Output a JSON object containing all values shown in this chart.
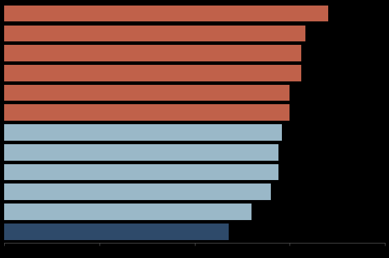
{
  "values": [
    85,
    79,
    78,
    78,
    75,
    75,
    73,
    72,
    72,
    70,
    65,
    59
  ],
  "colors": [
    "#c0614a",
    "#c0614a",
    "#c0614a",
    "#c0614a",
    "#c0614a",
    "#c0614a",
    "#9ab8c8",
    "#9ab8c8",
    "#9ab8c8",
    "#9ab8c8",
    "#9ab8c8",
    "#2e4a6a"
  ],
  "xlim": [
    0,
    100
  ],
  "background_color": "#000000",
  "bar_edge_color": "none",
  "bar_height": 0.82,
  "tick_color": "#666666",
  "axis_color": "#666666"
}
